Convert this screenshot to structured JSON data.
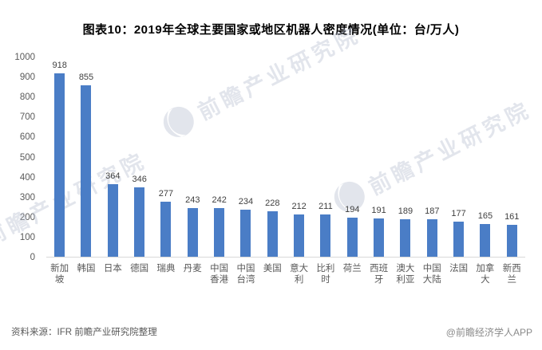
{
  "title": "图表10：2019年全球主要国家或地区机器人密度情况(单位：台/万人)",
  "chart_data": {
    "type": "bar",
    "title": "图表10：2019年全球主要国家或地区机器人密度情况(单位：台/万人)",
    "unit": "台/万人",
    "categories": [
      "新加坡",
      "韩国",
      "日本",
      "德国",
      "瑞典",
      "丹麦",
      "中国香港",
      "中国台湾",
      "美国",
      "意大利",
      "比利时",
      "荷兰",
      "西班牙",
      "澳大利亚",
      "中国大陆",
      "法国",
      "加拿大",
      "新西兰"
    ],
    "values": [
      918,
      855,
      364,
      346,
      277,
      243,
      242,
      234,
      228,
      212,
      211,
      194,
      191,
      189,
      187,
      177,
      165,
      161
    ],
    "ylim": [
      0,
      1000
    ],
    "ytick_step": 100,
    "grid": false,
    "legend_position": "none",
    "value_labels": true,
    "bar_color": "#4A7DC6"
  },
  "footer": {
    "source": "资料来源：IFR 前瞻产业研究院整理",
    "credit": "@前瞻经济学人APP"
  },
  "watermark": {
    "text": "前瞻产业研究院",
    "logo": "qianzhan-logo"
  },
  "colors": {
    "bar": "#4A7DC6",
    "axis_text": "#595959",
    "value_text": "#404040",
    "baseline": "#D9D9D9",
    "title_text": "#000000",
    "source_text": "#595959",
    "credit_text": "#8A8A8A",
    "watermark": "#B2BBCC"
  }
}
